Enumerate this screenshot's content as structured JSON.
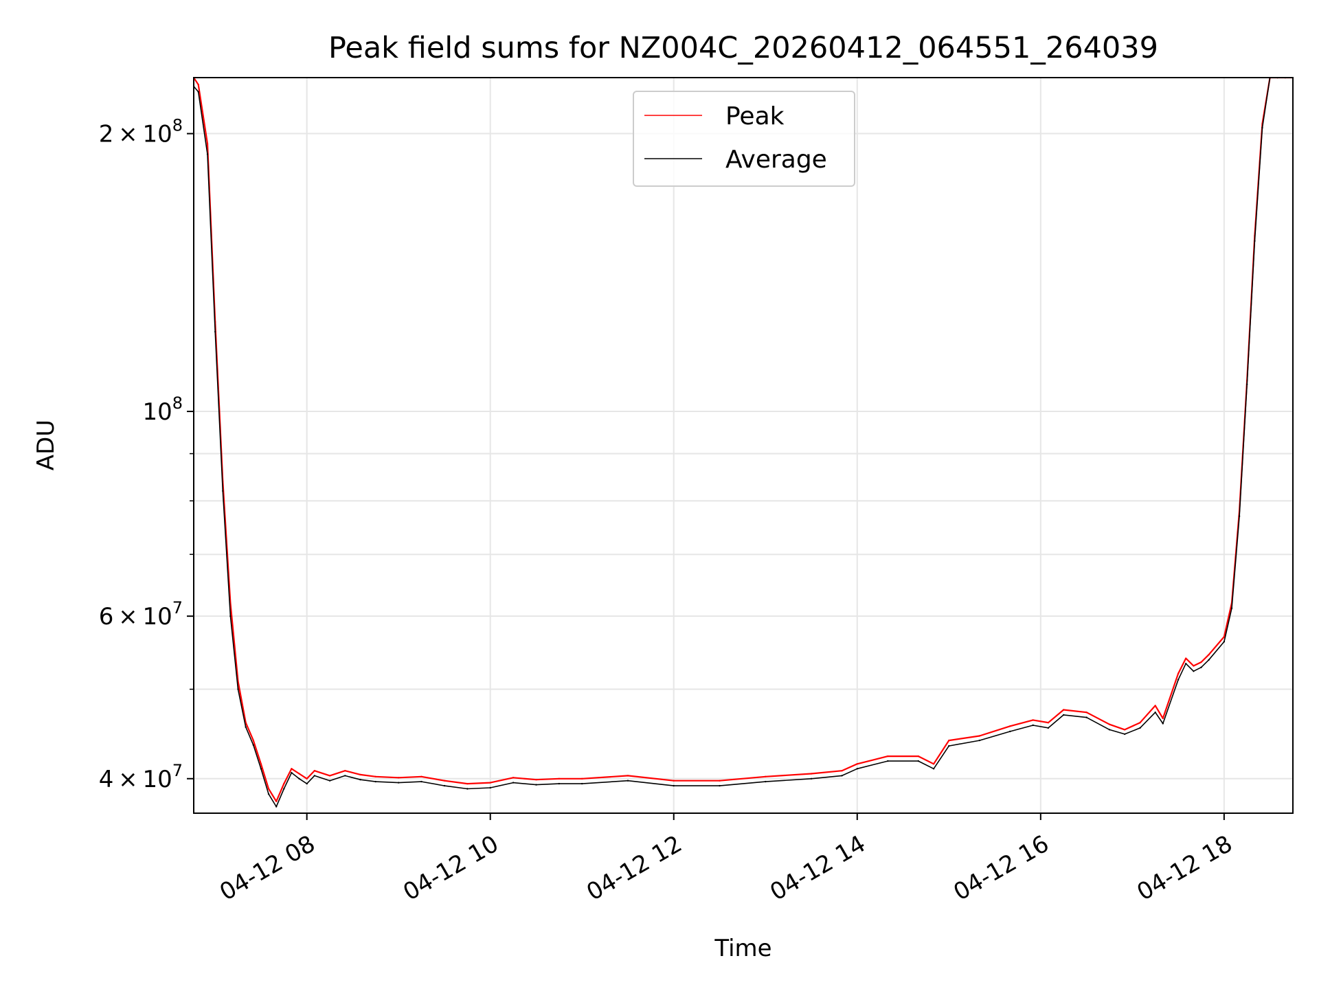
{
  "chart_data": {
    "type": "line",
    "title": "Peak field sums for NZ004C_20260412_064551_264039",
    "xlabel": "Time",
    "ylabel": "ADU",
    "yscale": "log",
    "grid": true,
    "legend_position": "top-center",
    "xlim": [
      "2026-04-12 06:46",
      "2026-04-12 18:45"
    ],
    "ylim": [
      36700000,
      230000000
    ],
    "x_ticks": [
      {
        "value": "2026-04-12 08:00",
        "label": "04-12 08"
      },
      {
        "value": "2026-04-12 10:00",
        "label": "04-12 10"
      },
      {
        "value": "2026-04-12 12:00",
        "label": "04-12 12"
      },
      {
        "value": "2026-04-12 14:00",
        "label": "04-12 14"
      },
      {
        "value": "2026-04-12 16:00",
        "label": "04-12 16"
      },
      {
        "value": "2026-04-12 18:00",
        "label": "04-12 18"
      }
    ],
    "y_ticks": [
      {
        "value": 40000000,
        "base": "4",
        "exp": "7"
      },
      {
        "value": 60000000,
        "base": "6",
        "exp": "7"
      },
      {
        "value": 100000000,
        "base": "",
        "exp": "8"
      },
      {
        "value": 200000000,
        "base": "2",
        "exp": "8"
      }
    ],
    "y_minor_ticks": [
      50000000,
      70000000,
      80000000,
      90000000
    ],
    "series": [
      {
        "name": "Peak",
        "color": "#ff0000",
        "x": [
          "2026-04-12 06:46",
          "2026-04-12 06:49",
          "2026-04-12 06:55",
          "2026-04-12 07:00",
          "2026-04-12 07:05",
          "2026-04-12 07:10",
          "2026-04-12 07:15",
          "2026-04-12 07:20",
          "2026-04-12 07:25",
          "2026-04-12 07:30",
          "2026-04-12 07:35",
          "2026-04-12 07:40",
          "2026-04-12 07:45",
          "2026-04-12 07:50",
          "2026-04-12 07:55",
          "2026-04-12 08:00",
          "2026-04-12 08:05",
          "2026-04-12 08:15",
          "2026-04-12 08:25",
          "2026-04-12 08:35",
          "2026-04-12 08:45",
          "2026-04-12 09:00",
          "2026-04-12 09:15",
          "2026-04-12 09:30",
          "2026-04-12 09:45",
          "2026-04-12 10:00",
          "2026-04-12 10:15",
          "2026-04-12 10:30",
          "2026-04-12 10:45",
          "2026-04-12 11:00",
          "2026-04-12 11:30",
          "2026-04-12 12:00",
          "2026-04-12 12:30",
          "2026-04-12 13:00",
          "2026-04-12 13:30",
          "2026-04-12 13:50",
          "2026-04-12 14:00",
          "2026-04-12 14:20",
          "2026-04-12 14:40",
          "2026-04-12 14:50",
          "2026-04-12 15:00",
          "2026-04-12 15:20",
          "2026-04-12 15:40",
          "2026-04-12 15:55",
          "2026-04-12 16:05",
          "2026-04-12 16:15",
          "2026-04-12 16:30",
          "2026-04-12 16:45",
          "2026-04-12 16:55",
          "2026-04-12 17:05",
          "2026-04-12 17:15",
          "2026-04-12 17:20",
          "2026-04-12 17:30",
          "2026-04-12 17:35",
          "2026-04-12 17:40",
          "2026-04-12 17:45",
          "2026-04-12 17:50",
          "2026-04-12 18:00",
          "2026-04-12 18:05",
          "2026-04-12 18:10",
          "2026-04-12 18:15",
          "2026-04-12 18:20",
          "2026-04-12 18:25",
          "2026-04-12 18:30",
          "2026-04-12 18:35",
          "2026-04-12 18:40",
          "2026-04-12 18:45"
        ],
        "y": [
          230000000,
          226000000,
          195000000,
          125000000,
          84000000,
          62000000,
          51000000,
          46000000,
          44000000,
          41500000,
          39000000,
          37800000,
          39500000,
          41000000,
          40500000,
          40000000,
          40800000,
          40300000,
          40800000,
          40400000,
          40200000,
          40100000,
          40200000,
          39800000,
          39500000,
          39600000,
          40100000,
          39900000,
          40000000,
          40000000,
          40300000,
          39800000,
          39800000,
          40200000,
          40500000,
          40800000,
          41500000,
          42300000,
          42300000,
          41500000,
          44000000,
          44500000,
          45600000,
          46300000,
          46000000,
          47500000,
          47200000,
          45800000,
          45200000,
          46000000,
          48000000,
          46500000,
          52000000,
          54000000,
          53000000,
          53500000,
          54500000,
          57000000,
          62000000,
          78000000,
          108000000,
          155000000,
          205000000,
          230000000,
          230000000,
          230000000,
          230000000
        ]
      },
      {
        "name": "Average",
        "color": "#000000",
        "x": [
          "2026-04-12 06:46",
          "2026-04-12 06:49",
          "2026-04-12 06:55",
          "2026-04-12 07:00",
          "2026-04-12 07:05",
          "2026-04-12 07:10",
          "2026-04-12 07:15",
          "2026-04-12 07:20",
          "2026-04-12 07:25",
          "2026-04-12 07:30",
          "2026-04-12 07:35",
          "2026-04-12 07:40",
          "2026-04-12 07:45",
          "2026-04-12 07:50",
          "2026-04-12 07:55",
          "2026-04-12 08:00",
          "2026-04-12 08:05",
          "2026-04-12 08:15",
          "2026-04-12 08:25",
          "2026-04-12 08:35",
          "2026-04-12 08:45",
          "2026-04-12 09:00",
          "2026-04-12 09:15",
          "2026-04-12 09:30",
          "2026-04-12 09:45",
          "2026-04-12 10:00",
          "2026-04-12 10:15",
          "2026-04-12 10:30",
          "2026-04-12 10:45",
          "2026-04-12 11:00",
          "2026-04-12 11:30",
          "2026-04-12 12:00",
          "2026-04-12 12:30",
          "2026-04-12 13:00",
          "2026-04-12 13:30",
          "2026-04-12 13:50",
          "2026-04-12 14:00",
          "2026-04-12 14:20",
          "2026-04-12 14:40",
          "2026-04-12 14:50",
          "2026-04-12 15:00",
          "2026-04-12 15:20",
          "2026-04-12 15:40",
          "2026-04-12 15:55",
          "2026-04-12 16:05",
          "2026-04-12 16:15",
          "2026-04-12 16:30",
          "2026-04-12 16:45",
          "2026-04-12 16:55",
          "2026-04-12 17:05",
          "2026-04-12 17:15",
          "2026-04-12 17:20",
          "2026-04-12 17:30",
          "2026-04-12 17:35",
          "2026-04-12 17:40",
          "2026-04-12 17:45",
          "2026-04-12 17:50",
          "2026-04-12 18:00",
          "2026-04-12 18:05",
          "2026-04-12 18:10",
          "2026-04-12 18:15",
          "2026-04-12 18:20",
          "2026-04-12 18:25",
          "2026-04-12 18:30",
          "2026-04-12 18:35",
          "2026-04-12 18:40",
          "2026-04-12 18:45"
        ],
        "y": [
          225000000,
          222000000,
          190000000,
          122000000,
          82000000,
          60000000,
          50000000,
          45500000,
          43500000,
          41000000,
          38500000,
          37300000,
          39000000,
          40600000,
          40000000,
          39500000,
          40300000,
          39800000,
          40300000,
          39900000,
          39700000,
          39600000,
          39700000,
          39300000,
          39000000,
          39100000,
          39600000,
          39400000,
          39500000,
          39500000,
          39800000,
          39300000,
          39300000,
          39700000,
          40000000,
          40300000,
          41000000,
          41800000,
          41800000,
          41000000,
          43400000,
          44000000,
          45000000,
          45700000,
          45400000,
          46900000,
          46600000,
          45200000,
          44700000,
          45400000,
          47200000,
          45900000,
          51200000,
          53300000,
          52300000,
          52800000,
          53800000,
          56300000,
          61200000,
          77000000,
          107000000,
          153000000,
          203000000,
          230000000,
          230000000,
          230000000,
          230000000
        ]
      }
    ]
  }
}
